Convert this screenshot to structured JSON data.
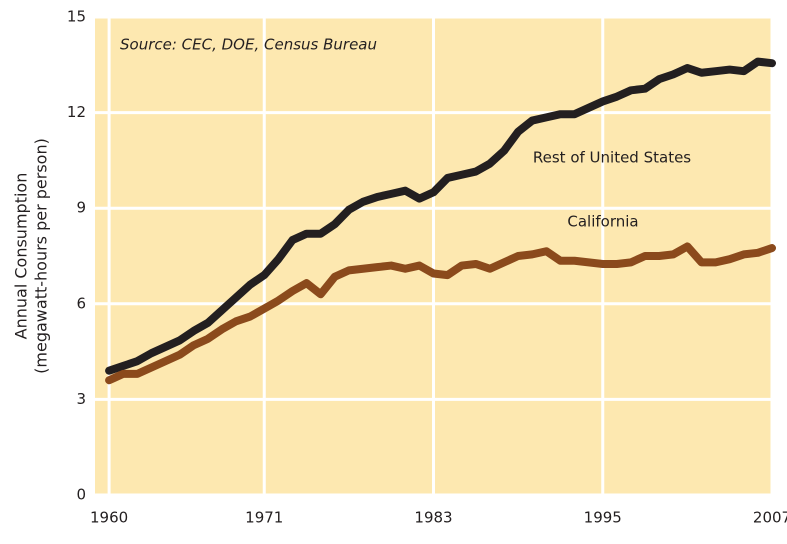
{
  "chart_data": {
    "type": "line",
    "source": "Source:  CEC, DOE, Census Bureau",
    "ylabel": [
      "Annual Consumption",
      "(megawatt-hours per person)"
    ],
    "x": [
      1960,
      1961,
      1962,
      1963,
      1964,
      1965,
      1966,
      1967,
      1968,
      1969,
      1970,
      1971,
      1972,
      1973,
      1974,
      1975,
      1976,
      1977,
      1978,
      1979,
      1980,
      1981,
      1982,
      1983,
      1984,
      1985,
      1986,
      1987,
      1988,
      1989,
      1990,
      1991,
      1992,
      1993,
      1994,
      1995,
      1996,
      1997,
      1998,
      1999,
      2000,
      2001,
      2002,
      2003,
      2004,
      2005,
      2006,
      2007
    ],
    "series": [
      {
        "name": "Rest of United States",
        "color": "#231f20",
        "values": [
          3.9,
          4.05,
          4.2,
          4.45,
          4.65,
          4.85,
          5.15,
          5.4,
          5.8,
          6.2,
          6.6,
          6.9,
          7.4,
          8.0,
          8.2,
          8.2,
          8.5,
          8.95,
          9.2,
          9.35,
          9.45,
          9.55,
          9.3,
          9.5,
          9.95,
          10.05,
          10.15,
          10.4,
          10.8,
          11.4,
          11.75,
          11.85,
          11.95,
          11.95,
          12.15,
          12.35,
          12.5,
          12.7,
          12.75,
          13.05,
          13.2,
          13.4,
          13.25,
          13.3,
          13.35,
          13.3,
          13.6,
          13.55
        ]
      },
      {
        "name": "California",
        "color": "#8b4a1c",
        "values": [
          3.6,
          3.8,
          3.8,
          4.0,
          4.2,
          4.4,
          4.7,
          4.9,
          5.2,
          5.45,
          5.6,
          5.85,
          6.1,
          6.4,
          6.65,
          6.3,
          6.85,
          7.05,
          7.1,
          7.15,
          7.2,
          7.1,
          7.2,
          6.95,
          6.9,
          7.2,
          7.25,
          7.1,
          7.3,
          7.5,
          7.55,
          7.65,
          7.35,
          7.35,
          7.3,
          7.25,
          7.25,
          7.3,
          7.5,
          7.5,
          7.55,
          7.8,
          7.3,
          7.3,
          7.4,
          7.55,
          7.6,
          7.75
        ]
      }
    ],
    "xlim": [
      1959,
      2007
    ],
    "xticks": [
      1960,
      1971,
      1983,
      1995,
      2007
    ],
    "ylim": [
      0,
      15
    ],
    "yticks": [
      0,
      3,
      6,
      9,
      12,
      15
    ],
    "grid": true,
    "background": "#fde8b0"
  }
}
